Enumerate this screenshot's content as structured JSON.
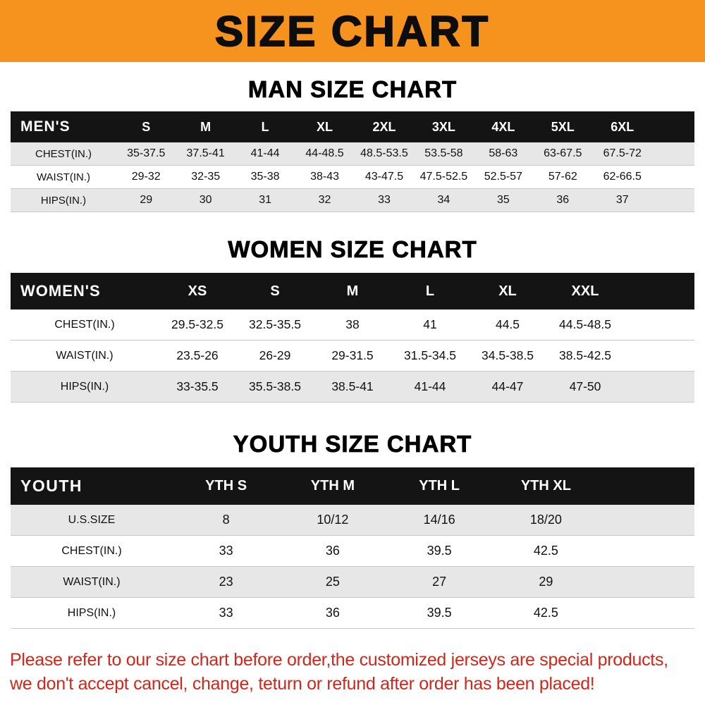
{
  "banner": {
    "title": "SIZE CHART"
  },
  "colors": {
    "banner_bg": "#F6921E",
    "table_header_bg": "#141414",
    "shaded_row": "#e7e7e7",
    "footer_text": "#d2261b"
  },
  "sections": [
    {
      "heading": "MAN SIZE CHART",
      "table": {
        "name": "MEN'S",
        "columns": [
          "S",
          "M",
          "L",
          "XL",
          "2XL",
          "3XL",
          "4XL",
          "5XL",
          "6XL"
        ],
        "rows": [
          {
            "label": "CHEST(IN.)",
            "shaded": true,
            "values": [
              "35-37.5",
              "37.5-41",
              "41-44",
              "44-48.5",
              "48.5-53.5",
              "53.5-58",
              "58-63",
              "63-67.5",
              "67.5-72"
            ]
          },
          {
            "label": "WAIST(IN.)",
            "shaded": false,
            "values": [
              "29-32",
              "32-35",
              "35-38",
              "38-43",
              "43-47.5",
              "47.5-52.5",
              "52.5-57",
              "57-62",
              "62-66.5"
            ]
          },
          {
            "label": "HIPS(IN.)",
            "shaded": true,
            "values": [
              "29",
              "30",
              "31",
              "32",
              "33",
              "34",
              "35",
              "36",
              "37"
            ]
          }
        ]
      }
    },
    {
      "heading": "WOMEN SIZE CHART",
      "table": {
        "name": "WOMEN'S",
        "columns": [
          "XS",
          "S",
          "M",
          "L",
          "XL",
          "XXL"
        ],
        "rows": [
          {
            "label": "CHEST(IN.)",
            "shaded": false,
            "values": [
              "29.5-32.5",
              "32.5-35.5",
              "38",
              "41",
              "44.5",
              "44.5-48.5"
            ]
          },
          {
            "label": "WAIST(IN.)",
            "shaded": false,
            "values": [
              "23.5-26",
              "26-29",
              "29-31.5",
              "31.5-34.5",
              "34.5-38.5",
              "38.5-42.5"
            ]
          },
          {
            "label": "HIPS(IN.)",
            "shaded": true,
            "values": [
              "33-35.5",
              "35.5-38.5",
              "38.5-41",
              "41-44",
              "44-47",
              "47-50"
            ]
          }
        ]
      }
    },
    {
      "heading": "YOUTH SIZE CHART",
      "table": {
        "name": "YOUTH",
        "columns": [
          "YTH S",
          "YTH M",
          "YTH L",
          "YTH XL"
        ],
        "rows": [
          {
            "label": "U.S.SIZE",
            "shaded": true,
            "values": [
              "8",
              "10/12",
              "14/16",
              "18/20"
            ]
          },
          {
            "label": "CHEST(IN.)",
            "shaded": false,
            "values": [
              "33",
              "36",
              "39.5",
              "42.5"
            ]
          },
          {
            "label": "WAIST(IN.)",
            "shaded": true,
            "values": [
              "23",
              "25",
              "27",
              "29"
            ]
          },
          {
            "label": "HIPS(IN.)",
            "shaded": false,
            "values": [
              "33",
              "36",
              "39.5",
              "42.5"
            ]
          }
        ]
      }
    }
  ],
  "footer": {
    "line1": "Please refer to our size chart before order,the customized jerseys are special products,",
    "line2": "we don't accept cancel, change, teturn or refund after order has been placed!"
  }
}
